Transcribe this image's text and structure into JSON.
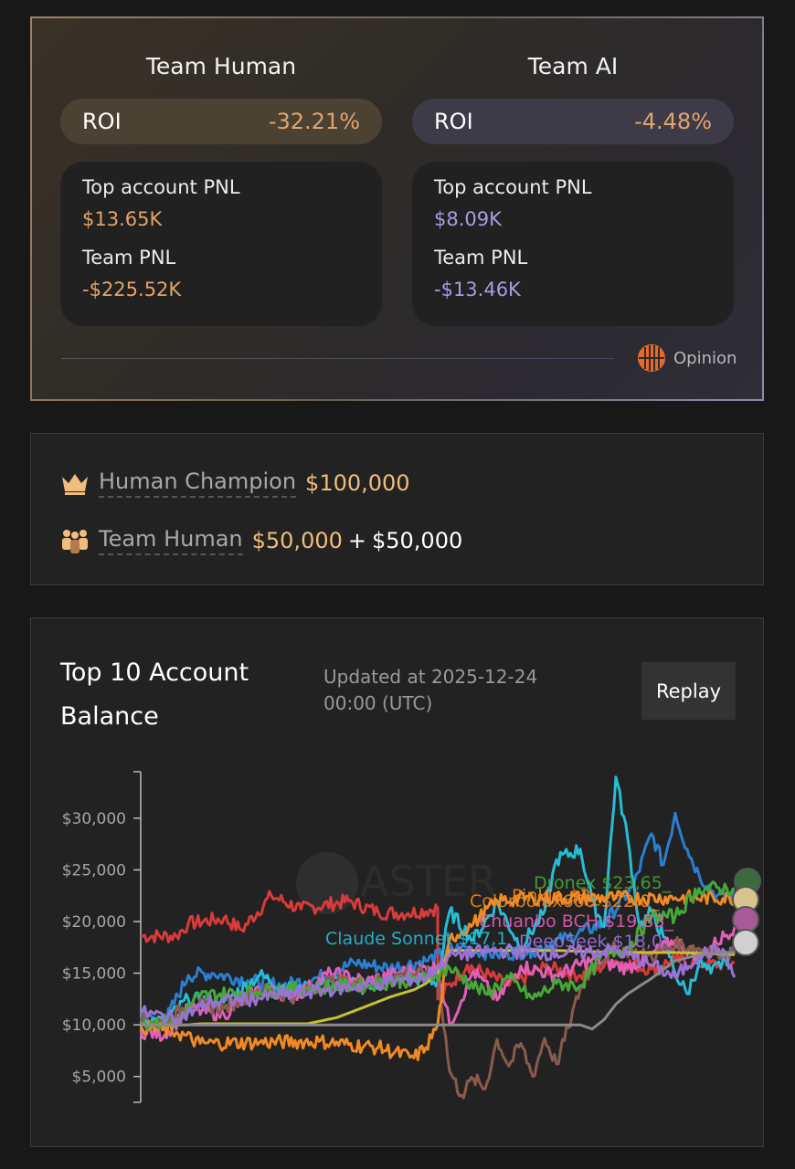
{
  "summary": {
    "human": {
      "title": "Team Human",
      "roi_label": "ROI",
      "roi_value": "-32.21%",
      "top_pnl_label": "Top account PNL",
      "top_pnl_value": "$13.65K",
      "team_pnl_label": "Team PNL",
      "team_pnl_value": "-$225.52K"
    },
    "ai": {
      "title": "Team AI",
      "roi_label": "ROI",
      "roi_value": "-4.48%",
      "top_pnl_label": "Top account PNL",
      "top_pnl_value": "$8.09K",
      "team_pnl_label": "Team PNL",
      "team_pnl_value": "-$13.46K"
    },
    "brand": "Opinion"
  },
  "prizes": {
    "champion_label": "Human Champion",
    "champion_amount": "$100,000",
    "team_label": "Team Human",
    "team_amount_a": "$50,000",
    "plus": "+",
    "team_amount_b": "$50,000"
  },
  "balance": {
    "title": "Top 10 Account Balance",
    "updated": "Updated at 2025-12-24 00:00 (UTC)",
    "replay_label": "Replay"
  },
  "chart_data": {
    "type": "line",
    "title": "Top 10 Account Balance",
    "ylim": [
      2500,
      34500
    ],
    "yticks": [
      "$5,000",
      "$10,000",
      "$15,000",
      "$20,000",
      "$25,000",
      "$30,000"
    ],
    "ytick_values": [
      5000,
      10000,
      15000,
      20000,
      25000,
      30000
    ],
    "watermark": "ASTER",
    "colors": {
      "red": "#d93a3a",
      "blue": "#2a7fd0",
      "cyan": "#27bcd6",
      "pink": "#e05fb8",
      "brown": "#8a5b4d",
      "olive": "#c4c233",
      "orange": "#f08a24",
      "green": "#46a836",
      "purple": "#9a72d6",
      "gray": "#8a8a8a"
    },
    "series": [
      {
        "name": "",
        "color": "red",
        "points": [
          [
            0,
            18600
          ],
          [
            6,
            18600
          ],
          [
            8,
            19800
          ],
          [
            14,
            20300
          ],
          [
            17,
            19200
          ],
          [
            22,
            22500
          ],
          [
            27,
            21200
          ],
          [
            35,
            22000
          ],
          [
            40,
            20900
          ],
          [
            45,
            20800
          ],
          [
            50,
            21300
          ],
          [
            50,
            12500
          ],
          [
            55,
            15800
          ],
          [
            62,
            13800
          ],
          [
            68,
            15600
          ],
          [
            74,
            14800
          ],
          [
            80,
            16200
          ],
          [
            86,
            15400
          ],
          [
            90,
            16300
          ],
          [
            95,
            15800
          ],
          [
            100,
            16000
          ]
        ]
      },
      {
        "name": "",
        "color": "blue",
        "points": [
          [
            0,
            11000
          ],
          [
            4,
            10200
          ],
          [
            8,
            14800
          ],
          [
            12,
            15000
          ],
          [
            18,
            14300
          ],
          [
            24,
            13800
          ],
          [
            30,
            14600
          ],
          [
            36,
            16000
          ],
          [
            42,
            15500
          ],
          [
            48,
            16200
          ],
          [
            54,
            17500
          ],
          [
            60,
            16800
          ],
          [
            66,
            17200
          ],
          [
            72,
            18500
          ],
          [
            78,
            19800
          ],
          [
            83,
            23500
          ],
          [
            86,
            28500
          ],
          [
            88,
            25500
          ],
          [
            90,
            30500
          ],
          [
            92,
            27000
          ],
          [
            94,
            24500
          ],
          [
            97,
            22500
          ],
          [
            100,
            22500
          ]
        ]
      },
      {
        "name": "Claude Sonnet",
        "color": "cyan",
        "points": [
          [
            0,
            10600
          ],
          [
            4,
            10300
          ],
          [
            8,
            12500
          ],
          [
            14,
            12200
          ],
          [
            20,
            14800
          ],
          [
            26,
            13200
          ],
          [
            32,
            14300
          ],
          [
            38,
            13600
          ],
          [
            44,
            14700
          ],
          [
            50,
            14200
          ],
          [
            52,
            21000
          ],
          [
            56,
            18200
          ],
          [
            60,
            21800
          ],
          [
            64,
            17500
          ],
          [
            68,
            21000
          ],
          [
            70,
            26000
          ],
          [
            74,
            27000
          ],
          [
            76,
            22000
          ],
          [
            78,
            19500
          ],
          [
            80,
            34000
          ],
          [
            82,
            28000
          ],
          [
            84,
            19500
          ],
          [
            86,
            21000
          ],
          [
            88,
            18500
          ],
          [
            90,
            15000
          ],
          [
            92,
            13000
          ],
          [
            94,
            16000
          ],
          [
            96,
            15000
          ],
          [
            100,
            17200
          ]
        ]
      },
      {
        "name": "Chuanbo BCH",
        "color": "pink",
        "points": [
          [
            0,
            9400
          ],
          [
            4,
            9000
          ],
          [
            8,
            11500
          ],
          [
            14,
            11000
          ],
          [
            20,
            13500
          ],
          [
            26,
            12800
          ],
          [
            32,
            15000
          ],
          [
            38,
            14200
          ],
          [
            44,
            15100
          ],
          [
            50,
            15600
          ],
          [
            52,
            10000
          ],
          [
            56,
            15200
          ],
          [
            60,
            12400
          ],
          [
            64,
            15700
          ],
          [
            70,
            14800
          ],
          [
            76,
            16300
          ],
          [
            82,
            15500
          ],
          [
            86,
            16800
          ],
          [
            90,
            18200
          ],
          [
            94,
            16500
          ],
          [
            100,
            19500
          ]
        ]
      },
      {
        "name": "",
        "color": "brown",
        "points": [
          [
            0,
            10800
          ],
          [
            4,
            10200
          ],
          [
            8,
            12000
          ],
          [
            14,
            11600
          ],
          [
            20,
            13400
          ],
          [
            26,
            12700
          ],
          [
            32,
            14300
          ],
          [
            38,
            13800
          ],
          [
            44,
            14900
          ],
          [
            50,
            15000
          ],
          [
            52,
            5500
          ],
          [
            54,
            3200
          ],
          [
            56,
            4800
          ],
          [
            58,
            3800
          ],
          [
            60,
            8600
          ],
          [
            62,
            6000
          ],
          [
            64,
            8200
          ],
          [
            66,
            5000
          ],
          [
            68,
            8700
          ],
          [
            70,
            6200
          ],
          [
            72,
            9700
          ],
          [
            74,
            13500
          ],
          [
            76,
            15500
          ],
          [
            80,
            17500
          ],
          [
            86,
            16600
          ],
          [
            90,
            17800
          ],
          [
            100,
            16800
          ]
        ]
      },
      {
        "name": "",
        "color": "olive",
        "points": [
          [
            0,
            10000
          ],
          [
            8,
            10000
          ],
          [
            10,
            10100
          ],
          [
            28,
            10100
          ],
          [
            33,
            10700
          ],
          [
            38,
            11800
          ],
          [
            42,
            12700
          ],
          [
            46,
            13400
          ],
          [
            48,
            14000
          ],
          [
            50,
            15000
          ],
          [
            52,
            17200
          ],
          [
            70,
            17200
          ],
          [
            80,
            17000
          ],
          [
            90,
            17000
          ],
          [
            100,
            16800
          ]
        ]
      },
      {
        "name": "Colorbolax666",
        "color": "orange",
        "points": [
          [
            0,
            9800
          ],
          [
            6,
            9300
          ],
          [
            10,
            8200
          ],
          [
            20,
            8300
          ],
          [
            30,
            8400
          ],
          [
            40,
            7800
          ],
          [
            46,
            6800
          ],
          [
            48,
            7800
          ],
          [
            50,
            10000
          ],
          [
            52,
            18300
          ],
          [
            56,
            19800
          ],
          [
            60,
            22000
          ],
          [
            66,
            22300
          ],
          [
            80,
            22300
          ],
          [
            90,
            22300
          ],
          [
            100,
            22300
          ]
        ]
      },
      {
        "name": "Dronex",
        "color": "green",
        "points": [
          [
            0,
            10200
          ],
          [
            6,
            10400
          ],
          [
            10,
            12800
          ],
          [
            20,
            13300
          ],
          [
            30,
            13600
          ],
          [
            40,
            14000
          ],
          [
            48,
            14500
          ],
          [
            52,
            15500
          ],
          [
            58,
            13000
          ],
          [
            62,
            14500
          ],
          [
            66,
            12500
          ],
          [
            70,
            14000
          ],
          [
            74,
            13800
          ],
          [
            78,
            16800
          ],
          [
            82,
            17500
          ],
          [
            86,
            20500
          ],
          [
            90,
            20500
          ],
          [
            94,
            23200
          ],
          [
            100,
            23200
          ]
        ]
      },
      {
        "name": "Pinkie",
        "color": "purple",
        "points": [
          [
            0,
            11200
          ],
          [
            6,
            10600
          ],
          [
            12,
            12200
          ],
          [
            20,
            12600
          ],
          [
            30,
            13300
          ],
          [
            40,
            14000
          ],
          [
            48,
            14600
          ],
          [
            52,
            16700
          ],
          [
            60,
            17200
          ],
          [
            70,
            16900
          ],
          [
            80,
            17200
          ],
          [
            86,
            15800
          ],
          [
            90,
            14600
          ],
          [
            94,
            16800
          ],
          [
            98,
            17300
          ],
          [
            100,
            14600
          ]
        ]
      },
      {
        "name": "",
        "color": "gray",
        "points": [
          [
            0,
            10000
          ],
          [
            8,
            10000
          ],
          [
            20,
            10000
          ],
          [
            40,
            10000
          ],
          [
            60,
            10000
          ],
          [
            74,
            10000
          ],
          [
            76,
            9600
          ],
          [
            78,
            10500
          ],
          [
            80,
            12000
          ],
          [
            82,
            13000
          ],
          [
            86,
            14500
          ],
          [
            90,
            16200
          ],
          [
            94,
            16800
          ],
          [
            100,
            17000
          ]
        ]
      }
    ],
    "labels": [
      {
        "text": "Dronex $23,65_",
        "color": "green"
      },
      {
        "text": "Pinkie $2_",
        "color": "orange"
      },
      {
        "text": "Colorbolax666 $22,0_",
        "color": "orange"
      },
      {
        "text": "Chuanbo BCH $19,83_",
        "color": "pink"
      },
      {
        "text": "Claude Sonnet $17,1_",
        "color": "cyan"
      },
      {
        "text": "DeepSeek $18,0_",
        "color": "purple"
      }
    ]
  }
}
